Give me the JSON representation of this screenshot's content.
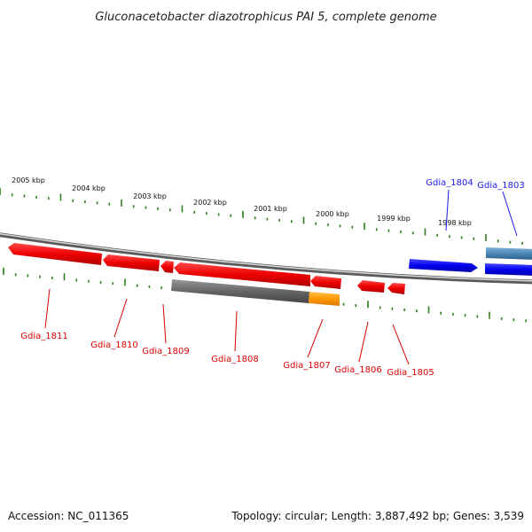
{
  "title": "Gluconacetobacter diazotrophicus PAI 5, complete genome",
  "footer": {
    "accession": "Accession: NC_011365",
    "topology": "Topology: circular; Length: 3,887,492 bp; Genes: 3,539"
  },
  "ruler_labels": [
    "2005 kbp",
    "2004 kbp",
    "2003 kbp",
    "2002 kbp",
    "2001 kbp",
    "2000 kbp",
    "1999 kbp",
    "1998 kbp"
  ],
  "genes_forward": [
    {
      "id": "Gdia_1804",
      "color": "#1a1aee"
    },
    {
      "id": "Gdia_1803",
      "color": "#1a1aee"
    }
  ],
  "genes_reverse": [
    {
      "id": "Gdia_1811",
      "color": "#dd0000"
    },
    {
      "id": "Gdia_1810",
      "color": "#dd0000"
    },
    {
      "id": "Gdia_1809",
      "color": "#dd0000"
    },
    {
      "id": "Gdia_1808",
      "color": "#dd0000"
    },
    {
      "id": "Gdia_1807",
      "color": "#dd0000"
    },
    {
      "id": "Gdia_1806",
      "color": "#dd0000"
    },
    {
      "id": "Gdia_1805",
      "color": "#dd0000"
    }
  ],
  "colors": {
    "reverse_gene": "#ee0000",
    "forward_gene": "#0000ee",
    "rna_feature": "#4a86b5",
    "pseudo_feature": "#666666",
    "orange_feature": "#ff9900",
    "tick": "#2e7d1e",
    "backbone": "#888888"
  }
}
